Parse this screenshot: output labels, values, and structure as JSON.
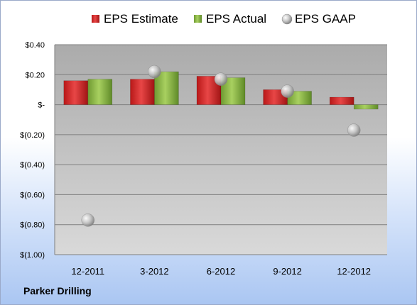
{
  "company_label": "Parker Drilling",
  "chart_data": {
    "type": "bar",
    "categories": [
      "12-2011",
      "3-2012",
      "6-2012",
      "9-2012",
      "12-2012"
    ],
    "series": [
      {
        "name": "EPS Estimate",
        "kind": "bar",
        "color": "#cc2222",
        "values": [
          0.16,
          0.17,
          0.19,
          0.1,
          0.05
        ]
      },
      {
        "name": "EPS Actual",
        "kind": "bar",
        "color": "#8cb848",
        "values": [
          0.17,
          0.22,
          0.18,
          0.09,
          -0.03
        ]
      },
      {
        "name": "EPS GAAP",
        "kind": "marker",
        "color": "#b0b0b0",
        "values": [
          -0.77,
          0.22,
          0.17,
          0.09,
          -0.17
        ]
      }
    ],
    "ylim": [
      -1.0,
      0.4
    ],
    "yticks": [
      0.4,
      0.2,
      0.0,
      -0.2,
      -0.4,
      -0.6,
      -0.8,
      -1.0
    ],
    "ytick_labels": [
      "$0.40",
      "$0.20",
      "$-",
      "$(0.20)",
      "$(0.40)",
      "$(0.60)",
      "$(0.80)",
      "$(1.00)"
    ],
    "grid": true,
    "legend_position": "top"
  }
}
